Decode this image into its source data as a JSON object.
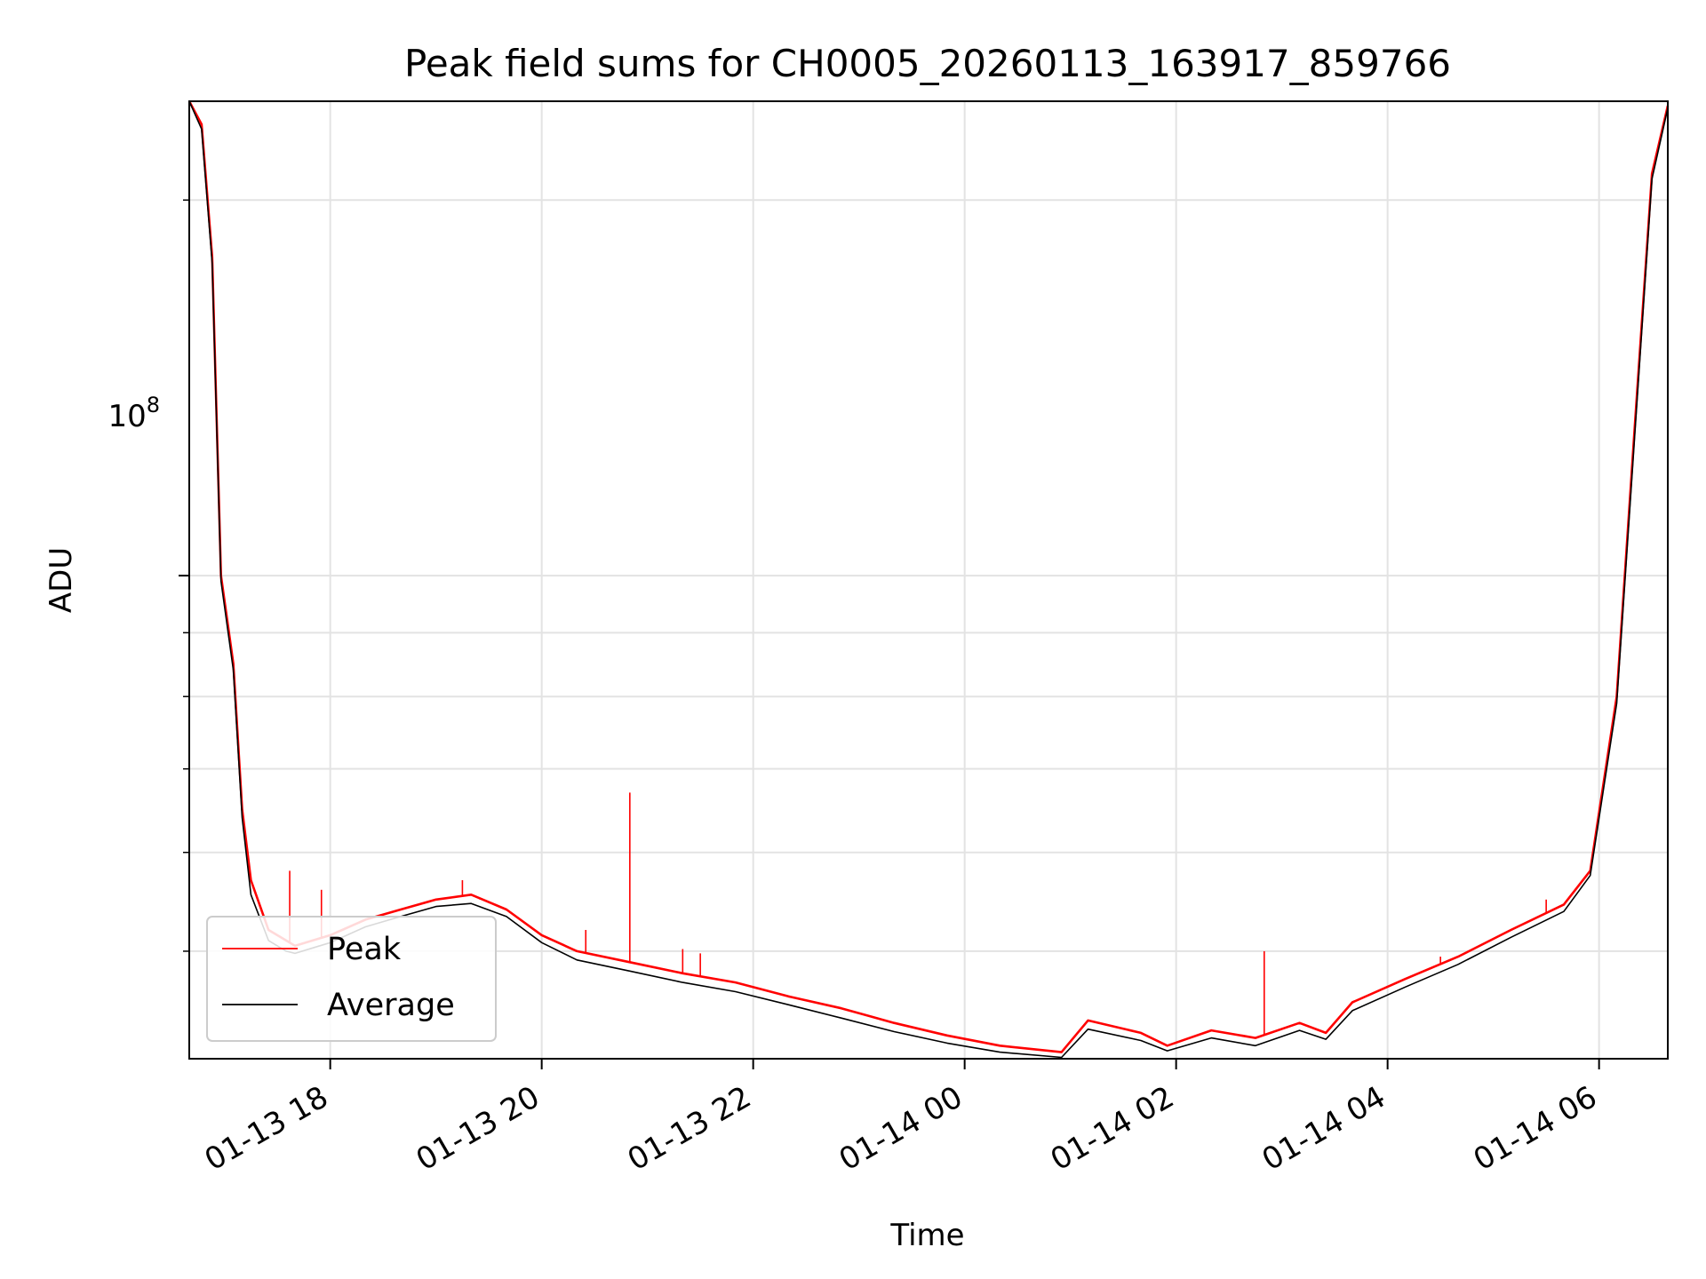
{
  "chart_data": {
    "type": "line",
    "title": "Peak field sums for CH0005_20260113_163917_859766",
    "xlabel": "Time",
    "ylabel": "ADU",
    "x_range": [
      "2026-01-13 16:40",
      "2026-01-14 06:39"
    ],
    "ylim": [
      41000000,
      240000000
    ],
    "y_scale": "log",
    "grid": true,
    "legend_position": "lower-left",
    "x_ticks": [
      "01-13 18",
      "01-13 20",
      "01-13 22",
      "01-14 00",
      "01-14 02",
      "01-14 04",
      "01-14 06"
    ],
    "x_tick_times": [
      "2026-01-13 18:00",
      "2026-01-13 20:00",
      "2026-01-13 22:00",
      "2026-01-14 00:00",
      "2026-01-14 02:00",
      "2026-01-14 04:00",
      "2026-01-14 06:00"
    ],
    "y_major_tick": {
      "value": 100000000,
      "label_base": "10",
      "label_exp": "8"
    },
    "y_minor_ticks": [
      50000000,
      60000000,
      70000000,
      80000000,
      90000000,
      200000000
    ],
    "series": [
      {
        "name": "Peak",
        "color": "#ff0000",
        "x": [
          "2026-01-13 16:40",
          "2026-01-13 16:47",
          "2026-01-13 16:53",
          "2026-01-13 16:58",
          "2026-01-13 17:05",
          "2026-01-13 17:10",
          "2026-01-13 17:15",
          "2026-01-13 17:25",
          "2026-01-13 17:35",
          "2026-01-13 17:40",
          "2026-01-13 17:50",
          "2026-01-13 18:00",
          "2026-01-13 18:20",
          "2026-01-13 18:40",
          "2026-01-13 19:00",
          "2026-01-13 19:20",
          "2026-01-13 19:40",
          "2026-01-13 20:00",
          "2026-01-13 20:20",
          "2026-01-13 20:50",
          "2026-01-13 21:20",
          "2026-01-13 21:50",
          "2026-01-13 22:20",
          "2026-01-13 22:50",
          "2026-01-13 23:20",
          "2026-01-13 23:50",
          "2026-01-14 00:20",
          "2026-01-14 00:55",
          "2026-01-14 01:10",
          "2026-01-14 01:40",
          "2026-01-14 01:55",
          "2026-01-14 02:20",
          "2026-01-14 02:45",
          "2026-01-14 03:10",
          "2026-01-14 03:25",
          "2026-01-14 03:40",
          "2026-01-14 04:10",
          "2026-01-14 04:40",
          "2026-01-14 05:10",
          "2026-01-14 05:40",
          "2026-01-14 05:55",
          "2026-01-14 06:10",
          "2026-01-14 06:20",
          "2026-01-14 06:30",
          "2026-01-14 06:39"
        ],
        "y": [
          240000000,
          230000000,
          180000000,
          100000000,
          85000000,
          65000000,
          57000000,
          52000000,
          51000000,
          50500000,
          51000000,
          51500000,
          53000000,
          54000000,
          55000000,
          55500000,
          54000000,
          51500000,
          50000000,
          49000000,
          48000000,
          47200000,
          46000000,
          45000000,
          43800000,
          42800000,
          42000000,
          41500000,
          44000000,
          43000000,
          42000000,
          43200000,
          42600000,
          43800000,
          43000000,
          45500000,
          47500000,
          49500000,
          52000000,
          54500000,
          58000000,
          80000000,
          130000000,
          210000000,
          238000000
        ],
        "spikes": [
          {
            "x": "2026-01-13 17:37",
            "y": 58000000
          },
          {
            "x": "2026-01-13 17:55",
            "y": 56000000
          },
          {
            "x": "2026-01-13 19:15",
            "y": 57000000
          },
          {
            "x": "2026-01-13 19:25",
            "y": 55000000
          },
          {
            "x": "2026-01-13 20:25",
            "y": 52000000
          },
          {
            "x": "2026-01-13 20:50",
            "y": 67000000
          },
          {
            "x": "2026-01-13 21:20",
            "y": 50200000
          },
          {
            "x": "2026-01-13 21:30",
            "y": 49800000
          },
          {
            "x": "2026-01-14 02:50",
            "y": 50000000
          },
          {
            "x": "2026-01-14 04:30",
            "y": 49500000
          },
          {
            "x": "2026-01-14 05:30",
            "y": 55000000
          }
        ]
      },
      {
        "name": "Average",
        "color": "#000000",
        "x": [
          "2026-01-13 16:40",
          "2026-01-13 16:47",
          "2026-01-13 16:53",
          "2026-01-13 16:58",
          "2026-01-13 17:05",
          "2026-01-13 17:10",
          "2026-01-13 17:15",
          "2026-01-13 17:25",
          "2026-01-13 17:35",
          "2026-01-13 17:40",
          "2026-01-13 17:50",
          "2026-01-13 18:00",
          "2026-01-13 18:20",
          "2026-01-13 18:40",
          "2026-01-13 19:00",
          "2026-01-13 19:20",
          "2026-01-13 19:40",
          "2026-01-13 20:00",
          "2026-01-13 20:20",
          "2026-01-13 20:50",
          "2026-01-13 21:20",
          "2026-01-13 21:50",
          "2026-01-13 22:20",
          "2026-01-13 22:50",
          "2026-01-13 23:20",
          "2026-01-13 23:50",
          "2026-01-14 00:20",
          "2026-01-14 00:55",
          "2026-01-14 01:10",
          "2026-01-14 01:40",
          "2026-01-14 01:55",
          "2026-01-14 02:20",
          "2026-01-14 02:45",
          "2026-01-14 03:10",
          "2026-01-14 03:25",
          "2026-01-14 03:40",
          "2026-01-14 04:10",
          "2026-01-14 04:40",
          "2026-01-14 05:10",
          "2026-01-14 05:40",
          "2026-01-14 05:55",
          "2026-01-14 06:10",
          "2026-01-14 06:20",
          "2026-01-14 06:30",
          "2026-01-14 06:39"
        ],
        "y": [
          240000000,
          228000000,
          178000000,
          99000000,
          84000000,
          64000000,
          55500000,
          51000000,
          50000000,
          49800000,
          50300000,
          50800000,
          52300000,
          53300000,
          54300000,
          54600000,
          53300000,
          50800000,
          49200000,
          48200000,
          47200000,
          46400000,
          45300000,
          44200000,
          43100000,
          42200000,
          41500000,
          41100000,
          43300000,
          42400000,
          41600000,
          42600000,
          42000000,
          43200000,
          42500000,
          44800000,
          46800000,
          48800000,
          51300000,
          53800000,
          57500000,
          79000000,
          128000000,
          208000000,
          237000000
        ]
      }
    ]
  }
}
